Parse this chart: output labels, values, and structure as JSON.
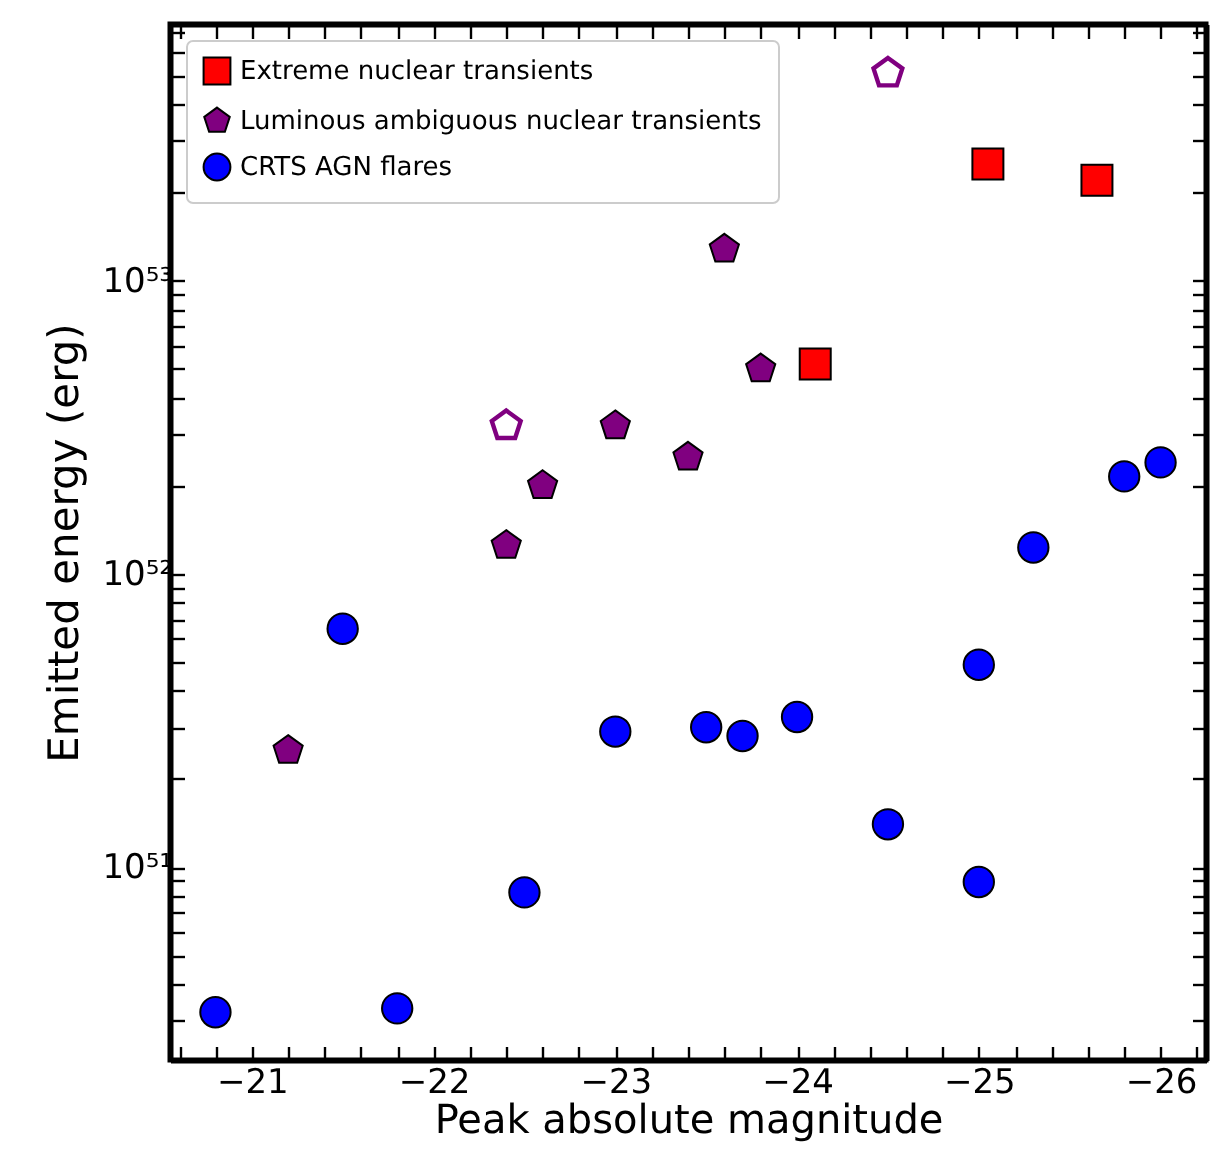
{
  "chart_data": {
    "type": "scatter",
    "xlabel": "Peak absolute magnitude",
    "ylabel": "Emitted energy (erg)",
    "log": "y",
    "grid": false,
    "legend": "top left",
    "xlim": [
      -20.55,
      -26.25
    ],
    "ylim": [
      2.2e+50,
      7.5e+53
    ],
    "xticks": [
      -21,
      -22,
      -23,
      -24,
      -25,
      -26,
      {
        "value": -20.6,
        "label": null
      },
      {
        "value": -20.8,
        "label": null
      },
      {
        "value": -21.2,
        "label": null
      },
      {
        "value": -21.4,
        "label": null
      },
      {
        "value": -21.6,
        "label": null
      },
      {
        "value": -21.8,
        "label": null
      },
      {
        "value": -22.2,
        "label": null
      },
      {
        "value": -22.4,
        "label": null
      },
      {
        "value": -22.6,
        "label": null
      },
      {
        "value": -22.8,
        "label": null
      },
      {
        "value": -23.2,
        "label": null
      },
      {
        "value": -23.4,
        "label": null
      },
      {
        "value": -23.6,
        "label": null
      },
      {
        "value": -23.8,
        "label": null
      },
      {
        "value": -24.2,
        "label": null
      },
      {
        "value": -24.4,
        "label": null
      },
      {
        "value": -24.6,
        "label": null
      },
      {
        "value": -24.8,
        "label": null
      },
      {
        "value": -25.2,
        "label": null
      },
      {
        "value": -25.4,
        "label": null
      },
      {
        "value": -25.6,
        "label": null
      },
      {
        "value": -25.8,
        "label": null
      },
      {
        "value": -26.2,
        "label": null
      }
    ],
    "yticks": [
      {
        "value": 1e+51,
        "label": "10⁵¹"
      },
      {
        "value": 1e+52,
        "label": "10⁵²"
      },
      {
        "value": 1e+53,
        "label": "10⁵³"
      },
      {
        "value": 3e+50,
        "label": null
      },
      {
        "value": 4e+50,
        "label": null
      },
      {
        "value": 5e+50,
        "label": null
      },
      {
        "value": 6e+50,
        "label": null
      },
      {
        "value": 7e+50,
        "label": null
      },
      {
        "value": 8e+50,
        "label": null
      },
      {
        "value": 9e+50,
        "label": null
      },
      {
        "value": 2e+51,
        "label": null
      },
      {
        "value": 3e+51,
        "label": null
      },
      {
        "value": 4e+51,
        "label": null
      },
      {
        "value": 5e+51,
        "label": null
      },
      {
        "value": 6e+51,
        "label": null
      },
      {
        "value": 7e+51,
        "label": null
      },
      {
        "value": 8e+51,
        "label": null
      },
      {
        "value": 9e+51,
        "label": null
      },
      {
        "value": 2e+52,
        "label": null
      },
      {
        "value": 3e+52,
        "label": null
      },
      {
        "value": 4e+52,
        "label": null
      },
      {
        "value": 5e+52,
        "label": null
      },
      {
        "value": 6e+52,
        "label": null
      },
      {
        "value": 7e+52,
        "label": null
      },
      {
        "value": 8e+52,
        "label": null
      },
      {
        "value": 9e+52,
        "label": null
      },
      {
        "value": 2e+53,
        "label": null
      },
      {
        "value": 3e+53,
        "label": null
      },
      {
        "value": 4e+53,
        "label": null
      },
      {
        "value": 5e+53,
        "label": null
      },
      {
        "value": 6e+53,
        "label": null
      },
      {
        "value": 7e+53,
        "label": null
      }
    ],
    "series": [
      {
        "name": "Extreme nuclear transients",
        "color": "#ff0000",
        "x": [
          -25.05,
          -25.65,
          -24.1
        ],
        "values": [
          2.5e+53,
          2.2e+53,
          5.2e+52
        ]
      },
      {
        "name": "Luminous ambiguous nuclear transients",
        "color": "#800080",
        "x": [
          -21.2,
          -22.4,
          -22.6,
          -23.0,
          -23.4,
          -23.6,
          -23.8
        ],
        "values": [
          2.5e+51,
          1.25e+52,
          2e+52,
          3.2e+52,
          2.5e+52,
          1.28e+53,
          5e+52
        ]
      },
      {
        "name": "CRTS AGN flares",
        "color": "#0000ff",
        "x": [
          -20.8,
          -21.5,
          -21.8,
          -22.5,
          -23.0,
          -23.5,
          -23.7,
          -24.0,
          -24.5,
          -25.0,
          -25.0,
          -25.3,
          -25.8,
          -26.0
        ],
        "values": [
          3.2e+50,
          6.5e+51,
          3.3e+50,
          8.2e+50,
          2.9e+51,
          3e+51,
          2.8e+51,
          3.25e+51,
          1.4e+51,
          4.9e+51,
          8.9e+50,
          1.23e+52,
          2.15e+52,
          2.4e+52
        ]
      },
      {
        "color": "#800080",
        "x": [
          -22.4,
          -24.5
        ],
        "values": [
          3.2e+52,
          5.1e+53
        ]
      }
    ]
  }
}
